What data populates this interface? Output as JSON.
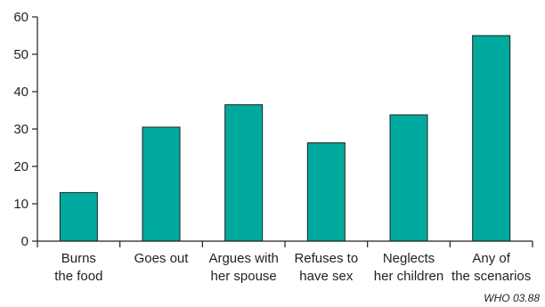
{
  "chart_data": {
    "type": "bar",
    "categories": [
      [
        "Burns",
        "the food"
      ],
      [
        "Goes out"
      ],
      [
        "Argues with",
        "her spouse"
      ],
      [
        "Refuses to",
        "have sex"
      ],
      [
        "Neglects",
        "her children"
      ],
      [
        "Any of",
        "the scenarios"
      ]
    ],
    "values": [
      13,
      30.5,
      36.5,
      26.3,
      33.8,
      55
    ],
    "yticks": [
      0,
      10,
      20,
      30,
      40,
      50,
      60
    ],
    "ylim": [
      0,
      60
    ],
    "title": "",
    "xlabel": "",
    "ylabel": "",
    "bar_color": "#00a99d",
    "grid": false
  },
  "source_note": "WHO 03.88"
}
